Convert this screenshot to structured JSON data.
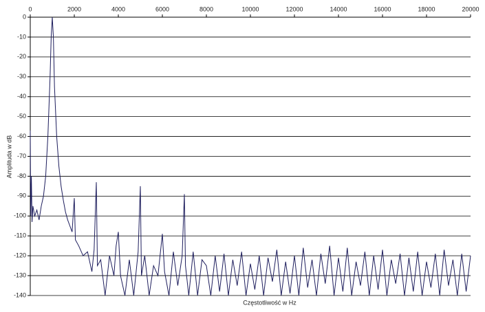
{
  "chart_data": {
    "type": "line",
    "xlabel": "Częstotliwość w Hz",
    "ylabel": "Amplituda w dB",
    "color": "#1c1c5c",
    "grid": true,
    "xlim": [
      0,
      20000
    ],
    "xticks": [
      0,
      2000,
      4000,
      6000,
      8000,
      10000,
      12000,
      14000,
      16000,
      18000,
      20000
    ],
    "ylim": [
      -140,
      0
    ],
    "yticks": [
      0,
      -10,
      -20,
      -30,
      -40,
      -50,
      -60,
      -70,
      -80,
      -90,
      -100,
      -110,
      -120,
      -130,
      -140
    ],
    "x": [
      0,
      20,
      50,
      80,
      120,
      200,
      300,
      400,
      500,
      600,
      700,
      800,
      900,
      950,
      1000,
      1050,
      1100,
      1200,
      1300,
      1400,
      1500,
      1600,
      1700,
      1800,
      1900,
      2000,
      2050,
      2200,
      2400,
      2600,
      2800,
      2900,
      3000,
      3050,
      3200,
      3400,
      3600,
      3800,
      3900,
      4000,
      4100,
      4300,
      4500,
      4700,
      4900,
      5000,
      5050,
      5200,
      5400,
      5600,
      5800,
      6000,
      6100,
      6300,
      6500,
      6700,
      6900,
      7000,
      7050,
      7200,
      7400,
      7600,
      7800,
      8000,
      8200,
      8400,
      8600,
      8800,
      9000,
      9200,
      9400,
      9600,
      9800,
      10000,
      10200,
      10400,
      10600,
      10800,
      11000,
      11200,
      11400,
      11600,
      11800,
      12000,
      12200,
      12400,
      12600,
      12800,
      13000,
      13200,
      13400,
      13600,
      13800,
      14000,
      14200,
      14400,
      14600,
      14800,
      15000,
      15200,
      15400,
      15600,
      15800,
      16000,
      16200,
      16400,
      16600,
      16800,
      17000,
      17200,
      17400,
      17600,
      17800,
      18000,
      18200,
      18400,
      18600,
      18800,
      19000,
      19200,
      19400,
      19600,
      19800,
      20000
    ],
    "values": [
      -57,
      -100,
      -80,
      -103,
      -95,
      -100,
      -97,
      -102,
      -95,
      -90,
      -80,
      -60,
      -30,
      -10,
      0,
      -10,
      -35,
      -60,
      -75,
      -85,
      -92,
      -98,
      -102,
      -105,
      -108,
      -91,
      -112,
      -115,
      -120,
      -118,
      -128,
      -117,
      -83,
      -125,
      -122,
      -140,
      -120,
      -130,
      -115,
      -108,
      -130,
      -140,
      -122,
      -140,
      -118,
      -85,
      -130,
      -120,
      -140,
      -125,
      -130,
      -109,
      -128,
      -140,
      -118,
      -135,
      -120,
      -89,
      -125,
      -140,
      -118,
      -140,
      -122,
      -125,
      -140,
      -120,
      -138,
      -119,
      -140,
      -122,
      -135,
      -118,
      -140,
      -124,
      -137,
      -120,
      -140,
      -121,
      -133,
      -117,
      -140,
      -123,
      -139,
      -120,
      -140,
      -116,
      -136,
      -122,
      -140,
      -119,
      -134,
      -115,
      -140,
      -121,
      -138,
      -116,
      -140,
      -123,
      -135,
      -118,
      -140,
      -120,
      -137,
      -117,
      -140,
      -122,
      -134,
      -119,
      -140,
      -121,
      -138,
      -118,
      -140,
      -123,
      -136,
      -119,
      -140,
      -117,
      -135,
      -122,
      -140,
      -119,
      -138,
      -120
    ]
  }
}
